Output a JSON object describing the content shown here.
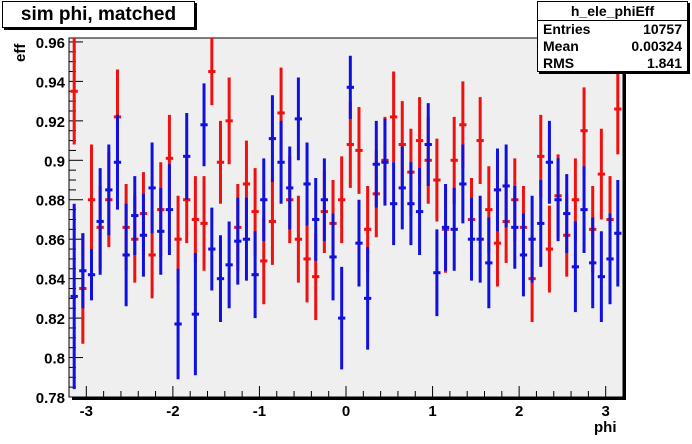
{
  "title": "sim phi, matched",
  "stats": {
    "name": "h_ele_phiEff",
    "rows": [
      {
        "label": "Entries",
        "value": "10757"
      },
      {
        "label": "Mean",
        "value": "0.00324"
      },
      {
        "label": "RMS",
        "value": "1.841"
      }
    ]
  },
  "chart_data": {
    "type": "scatter",
    "title": "sim phi, matched",
    "xlabel": "phi",
    "ylabel": "eff",
    "xlim": [
      -3.2,
      3.2
    ],
    "ylim": [
      0.78,
      0.962
    ],
    "x_ticks": [
      -3,
      -2,
      -1,
      0,
      1,
      2,
      3
    ],
    "x_tick_labels": [
      "-3",
      "-2",
      "-1",
      "0",
      "1",
      "2",
      "3"
    ],
    "y_ticks": [
      0.78,
      0.8,
      0.82,
      0.84,
      0.86,
      0.88,
      0.9,
      0.92,
      0.94,
      0.96
    ],
    "y_tick_labels": [
      "0.78",
      "0.8",
      "0.82",
      "0.84",
      "0.86",
      "0.88",
      "0.9",
      "0.92",
      "0.94",
      "0.96"
    ],
    "grid": false,
    "colors": {
      "series1": "#ee1111",
      "series2": "#1111dd",
      "frame_bg": "#efefef"
    },
    "series": [
      {
        "color": "#ee1111",
        "x_err": 0.042,
        "points": [
          [
            -3.14,
            0.935,
            0.027
          ],
          [
            -3.04,
            0.835,
            0.028
          ],
          [
            -2.94,
            0.88,
            0.028
          ],
          [
            -2.84,
            0.866,
            0.021
          ],
          [
            -2.74,
            0.88,
            0.024
          ],
          [
            -2.64,
            0.922,
            0.024
          ],
          [
            -2.54,
            0.866,
            0.022
          ],
          [
            -2.44,
            0.86,
            0.022
          ],
          [
            -2.34,
            0.873,
            0.021
          ],
          [
            -2.24,
            0.852,
            0.022
          ],
          [
            -2.14,
            0.875,
            0.024
          ],
          [
            -2.04,
            0.901,
            0.022
          ],
          [
            -1.94,
            0.86,
            0.022
          ],
          [
            -1.84,
            0.88,
            0.022
          ],
          [
            -1.74,
            0.87,
            0.022
          ],
          [
            -1.64,
            0.868,
            0.024
          ],
          [
            -1.55,
            0.945,
            0.017
          ],
          [
            -1.45,
            0.899,
            0.021
          ],
          [
            -1.35,
            0.92,
            0.022
          ],
          [
            -1.25,
            0.866,
            0.022
          ],
          [
            -1.15,
            0.888,
            0.022
          ],
          [
            -1.05,
            0.874,
            0.022
          ],
          [
            -0.95,
            0.849,
            0.022
          ],
          [
            -0.85,
            0.869,
            0.022
          ],
          [
            -0.75,
            0.924,
            0.023
          ],
          [
            -0.65,
            0.88,
            0.022
          ],
          [
            -0.55,
            0.86,
            0.022
          ],
          [
            -0.45,
            0.85,
            0.022
          ],
          [
            -0.35,
            0.841,
            0.022
          ],
          [
            -0.25,
            0.874,
            0.021
          ],
          [
            -0.15,
            0.868,
            0.022
          ],
          [
            -0.05,
            0.88,
            0.022
          ],
          [
            0.05,
            0.908,
            0.022
          ],
          [
            0.15,
            0.905,
            0.022
          ],
          [
            0.25,
            0.865,
            0.022
          ],
          [
            0.35,
            0.883,
            0.022
          ],
          [
            0.45,
            0.9,
            0.022
          ],
          [
            0.55,
            0.922,
            0.023
          ],
          [
            0.65,
            0.908,
            0.022
          ],
          [
            0.75,
            0.894,
            0.022
          ],
          [
            0.85,
            0.91,
            0.022
          ],
          [
            0.95,
            0.9,
            0.022
          ],
          [
            1.05,
            0.89,
            0.021
          ],
          [
            1.15,
            0.865,
            0.022
          ],
          [
            1.25,
            0.9,
            0.022
          ],
          [
            1.35,
            0.918,
            0.022
          ],
          [
            1.45,
            0.87,
            0.021
          ],
          [
            1.55,
            0.91,
            0.022
          ],
          [
            1.65,
            0.875,
            0.022
          ],
          [
            1.75,
            0.858,
            0.022
          ],
          [
            1.85,
            0.869,
            0.021
          ],
          [
            1.95,
            0.88,
            0.021
          ],
          [
            2.05,
            0.866,
            0.021
          ],
          [
            2.15,
            0.84,
            0.022
          ],
          [
            2.25,
            0.902,
            0.021
          ],
          [
            2.35,
            0.855,
            0.022
          ],
          [
            2.45,
            0.882,
            0.021
          ],
          [
            2.55,
            0.862,
            0.021
          ],
          [
            2.65,
            0.88,
            0.021
          ],
          [
            2.75,
            0.915,
            0.022
          ],
          [
            2.85,
            0.865,
            0.022
          ],
          [
            2.95,
            0.893,
            0.023
          ],
          [
            3.05,
            0.87,
            0.022
          ],
          [
            3.14,
            0.926,
            0.023
          ]
        ]
      },
      {
        "color": "#1111dd",
        "x_err": 0.042,
        "points": [
          [
            -3.14,
            0.831,
            0.047
          ],
          [
            -3.04,
            0.844,
            0.019
          ],
          [
            -2.94,
            0.842,
            0.013
          ],
          [
            -2.84,
            0.869,
            0.027
          ],
          [
            -2.74,
            0.885,
            0.023
          ],
          [
            -2.64,
            0.899,
            0.024
          ],
          [
            -2.54,
            0.852,
            0.026
          ],
          [
            -2.44,
            0.872,
            0.02
          ],
          [
            -2.34,
            0.862,
            0.021
          ],
          [
            -2.24,
            0.886,
            0.023
          ],
          [
            -2.14,
            0.864,
            0.022
          ],
          [
            -2.04,
            0.875,
            0.023
          ],
          [
            -1.94,
            0.817,
            0.028
          ],
          [
            -1.84,
            0.902,
            0.022
          ],
          [
            -1.74,
            0.822,
            0.031
          ],
          [
            -1.64,
            0.918,
            0.021
          ],
          [
            -1.55,
            0.855,
            0.021
          ],
          [
            -1.45,
            0.84,
            0.022
          ],
          [
            -1.35,
            0.847,
            0.022
          ],
          [
            -1.25,
            0.859,
            0.022
          ],
          [
            -1.15,
            0.86,
            0.021
          ],
          [
            -1.05,
            0.842,
            0.022
          ],
          [
            -0.95,
            0.88,
            0.021
          ],
          [
            -0.85,
            0.911,
            0.022
          ],
          [
            -0.75,
            0.899,
            0.021
          ],
          [
            -0.65,
            0.886,
            0.021
          ],
          [
            -0.55,
            0.921,
            0.021
          ],
          [
            -0.45,
            0.888,
            0.021
          ],
          [
            -0.35,
            0.87,
            0.021
          ],
          [
            -0.25,
            0.88,
            0.021
          ],
          [
            -0.15,
            0.851,
            0.022
          ],
          [
            -0.05,
            0.82,
            0.026
          ],
          [
            0.05,
            0.937,
            0.016
          ],
          [
            0.15,
            0.858,
            0.022
          ],
          [
            0.25,
            0.83,
            0.026
          ],
          [
            0.35,
            0.898,
            0.022
          ],
          [
            0.45,
            0.899,
            0.022
          ],
          [
            0.55,
            0.878,
            0.021
          ],
          [
            0.65,
            0.886,
            0.021
          ],
          [
            0.75,
            0.878,
            0.021
          ],
          [
            0.85,
            0.874,
            0.022
          ],
          [
            0.95,
            0.908,
            0.021
          ],
          [
            1.05,
            0.843,
            0.022
          ],
          [
            1.15,
            0.866,
            0.022
          ],
          [
            1.25,
            0.865,
            0.021
          ],
          [
            1.35,
            0.888,
            0.02
          ],
          [
            1.45,
            0.86,
            0.021
          ],
          [
            1.55,
            0.86,
            0.022
          ],
          [
            1.65,
            0.848,
            0.023
          ],
          [
            1.75,
            0.885,
            0.021
          ],
          [
            1.85,
            0.887,
            0.021
          ],
          [
            1.95,
            0.866,
            0.021
          ],
          [
            2.05,
            0.852,
            0.021
          ],
          [
            2.15,
            0.86,
            0.022
          ],
          [
            2.25,
            0.868,
            0.022
          ],
          [
            2.35,
            0.899,
            0.021
          ],
          [
            2.45,
            0.88,
            0.021
          ],
          [
            2.55,
            0.873,
            0.02
          ],
          [
            2.65,
            0.846,
            0.023
          ],
          [
            2.75,
            0.875,
            0.022
          ],
          [
            2.85,
            0.848,
            0.023
          ],
          [
            2.95,
            0.841,
            0.023
          ],
          [
            3.05,
            0.85,
            0.023
          ],
          [
            3.14,
            0.863,
            0.027
          ]
        ]
      }
    ]
  }
}
